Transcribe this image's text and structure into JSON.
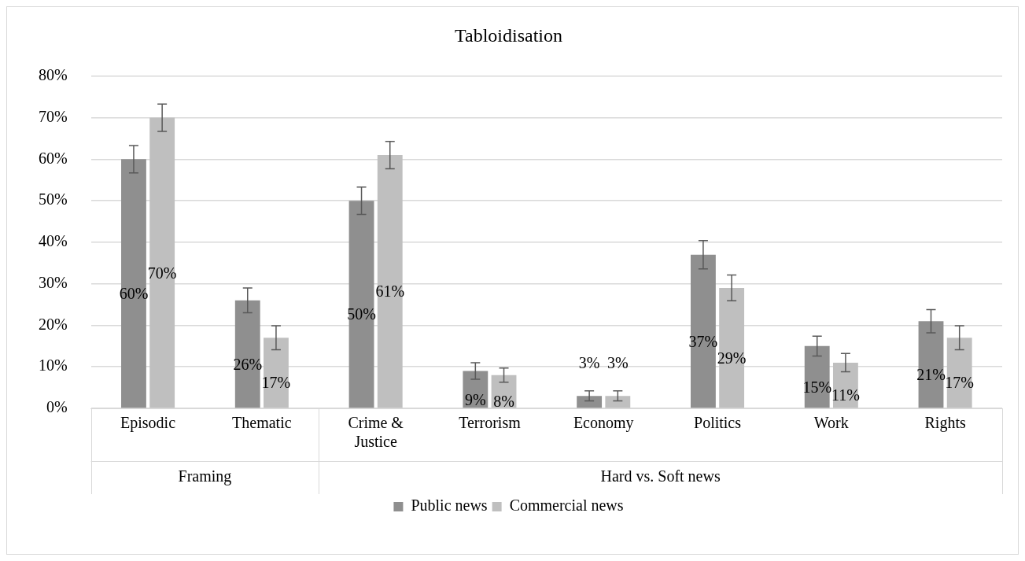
{
  "chart_data": {
    "type": "bar",
    "title": "Tabloidisation",
    "categories": [
      "Episodic",
      "Thematic",
      "Crime & Justice",
      "Terrorism",
      "Economy",
      "Politics",
      "Work",
      "Rights"
    ],
    "series": [
      {
        "name": "Public news",
        "color": "#8f8f8f",
        "values": [
          60,
          26,
          50,
          9,
          3,
          37,
          15,
          21
        ],
        "errors": [
          3.3,
          3.0,
          3.3,
          2.0,
          1.2,
          3.4,
          2.4,
          2.8
        ],
        "value_labels": [
          "60%",
          "26%",
          "50%",
          "9%",
          "3%",
          "37%",
          "15%",
          "21%"
        ]
      },
      {
        "name": "Commercial news",
        "color": "#bfbfbf",
        "values": [
          70,
          17,
          61,
          8,
          3,
          29,
          11,
          17
        ],
        "errors": [
          3.3,
          2.9,
          3.3,
          1.7,
          1.2,
          3.1,
          2.2,
          2.9
        ],
        "value_labels": [
          "70%",
          "17%",
          "61%",
          "8%",
          "3%",
          "29%",
          "11%",
          "17%"
        ]
      }
    ],
    "ylim": [
      0,
      80
    ],
    "yticks": [
      {
        "value": 0,
        "label": "0%"
      },
      {
        "value": 10,
        "label": "10%"
      },
      {
        "value": 20,
        "label": "20%"
      },
      {
        "value": 30,
        "label": "30%"
      },
      {
        "value": 40,
        "label": "40%"
      },
      {
        "value": 50,
        "label": "50%"
      },
      {
        "value": 60,
        "label": "60%"
      },
      {
        "value": 70,
        "label": "70%"
      },
      {
        "value": 80,
        "label": "80%"
      }
    ],
    "grid": "y",
    "legend": "bottom",
    "annotations": [
      "Framing",
      "Hard vs. Soft news"
    ]
  }
}
